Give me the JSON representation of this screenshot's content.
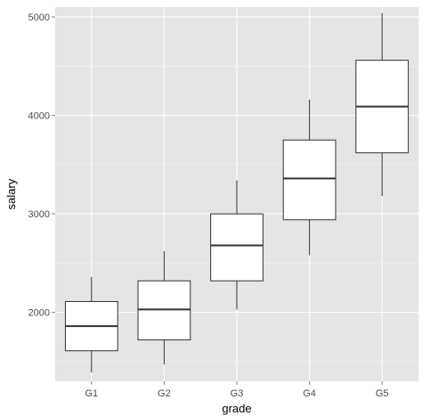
{
  "chart_data": {
    "type": "boxplot",
    "title": "",
    "xlabel": "grade",
    "ylabel": "salary",
    "categories": [
      "G1",
      "G2",
      "G3",
      "G4",
      "G5"
    ],
    "y_ticks": [
      2000,
      3000,
      4000,
      5000
    ],
    "ylim": [
      1300,
      5100
    ],
    "boxes": [
      {
        "category": "G1",
        "whisker_low": 1390,
        "q1": 1610,
        "median": 1860,
        "q3": 2110,
        "whisker_high": 2360
      },
      {
        "category": "G2",
        "whisker_low": 1470,
        "q1": 1720,
        "median": 2030,
        "q3": 2320,
        "whisker_high": 2620
      },
      {
        "category": "G3",
        "whisker_low": 2030,
        "q1": 2320,
        "median": 2680,
        "q3": 3000,
        "whisker_high": 3340
      },
      {
        "category": "G4",
        "whisker_low": 2580,
        "q1": 2940,
        "median": 3360,
        "q3": 3750,
        "whisker_high": 4160
      },
      {
        "category": "G5",
        "whisker_low": 3180,
        "q1": 3620,
        "median": 4090,
        "q3": 4560,
        "whisker_high": 5040
      }
    ],
    "grid": true,
    "panel_background": "#e5e5e5",
    "grid_color": "#ffffff",
    "box_fill": "#ffffff",
    "line_color": "#333333"
  }
}
